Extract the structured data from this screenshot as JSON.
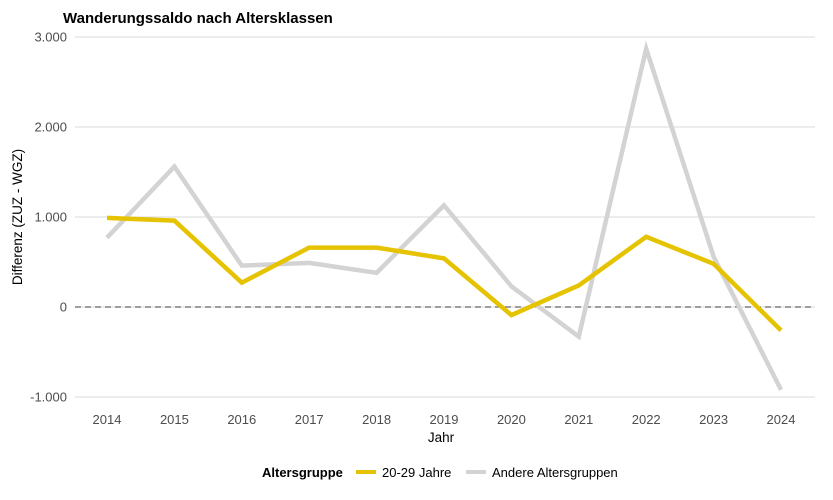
{
  "chart_data": {
    "type": "line",
    "title": "Wanderungssaldo nach Altersklassen",
    "xlabel": "Jahr",
    "ylabel": "Differenz (ZUZ - WGZ)",
    "x": [
      2014,
      2015,
      2016,
      2017,
      2018,
      2019,
      2020,
      2021,
      2022,
      2023,
      2024
    ],
    "x_tick_labels": [
      "2014",
      "2015",
      "2016",
      "2017",
      "2018",
      "2019",
      "2020",
      "2021",
      "2022",
      "2023",
      "2024"
    ],
    "ylim": [
      -1000,
      3000
    ],
    "y_ticks": [
      -1000,
      0,
      1000,
      2000,
      3000
    ],
    "y_tick_labels": [
      "-1.000",
      "0",
      "1.000",
      "2.000",
      "3.000"
    ],
    "grid": "horizontal",
    "reference_line": {
      "y": 0,
      "style": "dashed"
    },
    "legend": {
      "title": "Altersgruppe",
      "placement": "bottom"
    },
    "series": [
      {
        "name": "20-29 Jahre",
        "color": "#e6c300",
        "values": [
          990,
          960,
          270,
          660,
          660,
          540,
          -90,
          240,
          780,
          480,
          -260
        ]
      },
      {
        "name": "Andere Altersgruppen",
        "color": "#d3d3d3",
        "values": [
          770,
          1560,
          460,
          490,
          380,
          1130,
          230,
          -330,
          2870,
          560,
          -920
        ]
      }
    ]
  }
}
